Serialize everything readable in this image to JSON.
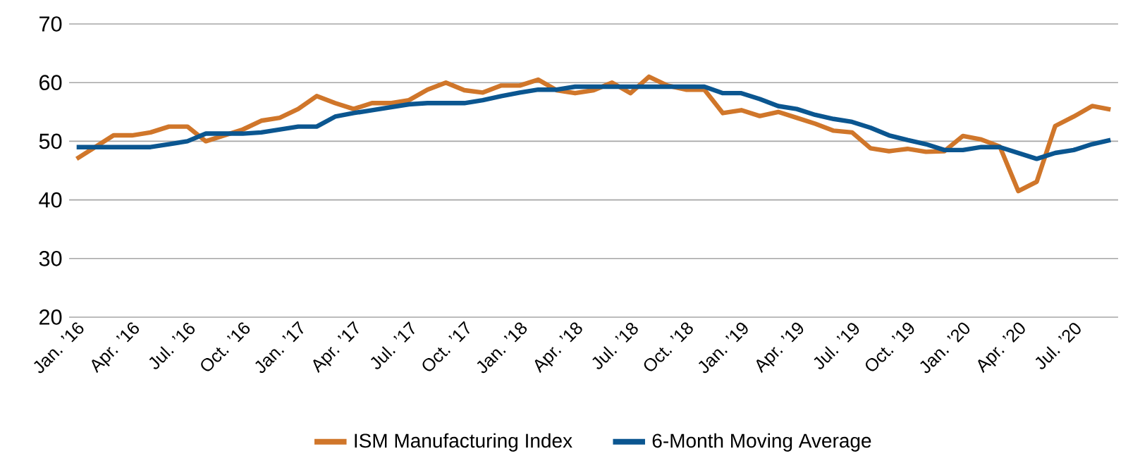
{
  "chart_data": {
    "type": "line",
    "categories": [
      "Jan. ’16",
      null,
      null,
      "Apr. ’16",
      null,
      null,
      "Jul. ’16",
      null,
      null,
      "Oct. ’16",
      null,
      null,
      "Jan. ’17",
      null,
      null,
      "Apr. ’17",
      null,
      null,
      "Jul. ’17",
      null,
      null,
      "Oct. ’17",
      null,
      null,
      "Jan. ’18",
      null,
      null,
      "Apr. ’18",
      null,
      null,
      "Jul. ’18",
      null,
      null,
      "Oct. ’18",
      null,
      null,
      "Jan. ’19",
      null,
      null,
      "Apr. ’19",
      null,
      null,
      "Jul. ’19",
      null,
      null,
      "Oct. ’19",
      null,
      null,
      "Jan. ’20",
      null,
      null,
      "Apr. ’20",
      null,
      null,
      "Jul. ’20",
      null,
      null
    ],
    "series": [
      {
        "name": "ISM Manufacturing Index",
        "color": "#d0762a",
        "values": [
          47,
          49,
          51,
          51,
          51.5,
          52.5,
          52.5,
          50,
          51,
          52,
          53.5,
          54,
          55.5,
          57.7,
          56.5,
          55.5,
          56.5,
          56.5,
          57,
          58.8,
          60,
          58.7,
          58.3,
          59.5,
          59.5,
          60.5,
          58.7,
          58.2,
          58.7,
          60,
          58.2,
          61,
          59.5,
          58.8,
          58.8,
          54.8,
          55.3,
          54.3,
          55,
          54,
          53,
          51.8,
          51.5,
          48.8,
          48.3,
          48.7,
          48.2,
          48.3,
          50.9,
          50.3,
          49.1,
          41.5,
          43.1,
          52.6,
          54.2,
          56,
          55.4
        ]
      },
      {
        "name": "6-Month Moving Average",
        "color": "#0b5690",
        "values": [
          49,
          49,
          49,
          49,
          49,
          49.5,
          50,
          51.3,
          51.3,
          51.3,
          51.5,
          52,
          52.5,
          52.5,
          54.2,
          54.8,
          55.3,
          55.8,
          56.3,
          56.5,
          56.5,
          56.5,
          57,
          57.7,
          58.3,
          58.8,
          58.8,
          59.3,
          59.3,
          59.3,
          59.3,
          59.3,
          59.3,
          59.3,
          59.3,
          58.2,
          58.2,
          57.2,
          56,
          55.5,
          54.5,
          53.8,
          53.3,
          52.3,
          51,
          50.2,
          49.5,
          48.5,
          48.5,
          49,
          49,
          48,
          47,
          48,
          48.5,
          49.5,
          50.2
        ]
      }
    ],
    "ylim": [
      20,
      70
    ],
    "yticks": [
      20,
      30,
      40,
      50,
      60,
      70
    ],
    "grid": "y",
    "legend": "bottom"
  }
}
